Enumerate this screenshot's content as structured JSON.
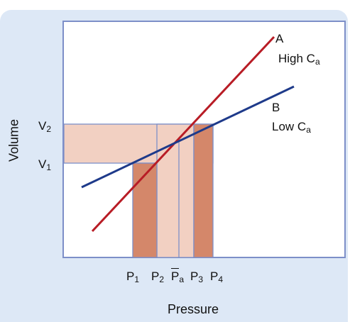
{
  "axes": {
    "x_title": "Pressure",
    "y_title": "Volume"
  },
  "y_ticks": {
    "v1": {
      "base": "V",
      "sub": "1"
    },
    "v2": {
      "base": "V",
      "sub": "2"
    }
  },
  "x_ticks": {
    "p1": {
      "base": "P",
      "sub": "1"
    },
    "p2": {
      "base": "P",
      "sub": "2"
    },
    "pa": {
      "base": "P",
      "sub": "a"
    },
    "p3": {
      "base": "P",
      "sub": "3"
    },
    "p4": {
      "base": "P",
      "sub": "4"
    }
  },
  "lines": {
    "a": {
      "letter": "A",
      "caption": "High C",
      "sub": "a",
      "color": "#b81c25"
    },
    "b": {
      "letter": "B",
      "caption": "Low C",
      "sub": "a",
      "color": "#1e3a8a"
    }
  },
  "colors": {
    "panel": "#dde8f6",
    "frame": "#7d8fc8",
    "dark_fill": "#d4876a",
    "light_fill": "#f2d0c2"
  }
}
